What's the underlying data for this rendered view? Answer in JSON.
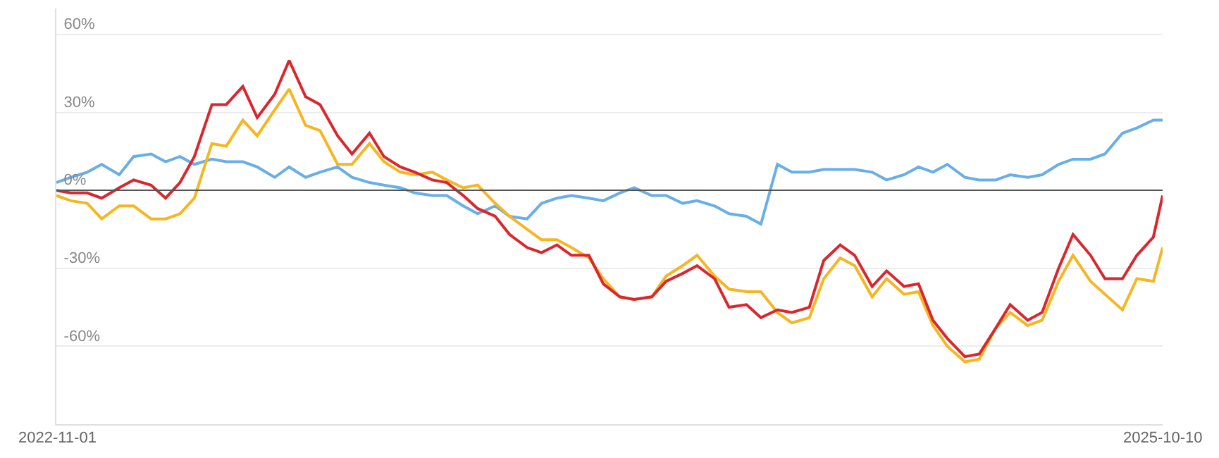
{
  "chart_data": {
    "type": "line",
    "x": [
      "2022-11-01",
      "2022-11-15",
      "2022-12-01",
      "2022-12-15",
      "2023-01-01",
      "2023-01-15",
      "2023-02-01",
      "2023-02-15",
      "2023-03-01",
      "2023-03-15",
      "2023-04-01",
      "2023-04-15",
      "2023-05-01",
      "2023-05-15",
      "2023-06-01",
      "2023-06-15",
      "2023-07-01",
      "2023-07-15",
      "2023-08-01",
      "2023-08-15",
      "2023-09-01",
      "2023-09-15",
      "2023-10-01",
      "2023-10-15",
      "2023-11-01",
      "2023-11-15",
      "2023-12-01",
      "2023-12-15",
      "2024-01-01",
      "2024-01-15",
      "2024-02-01",
      "2024-02-15",
      "2024-03-01",
      "2024-03-15",
      "2024-04-01",
      "2024-04-15",
      "2024-05-01",
      "2024-05-15",
      "2024-06-01",
      "2024-06-15",
      "2024-07-01",
      "2024-07-15",
      "2024-08-01",
      "2024-08-15",
      "2024-09-01",
      "2024-09-15",
      "2024-10-01",
      "2024-10-15",
      "2024-11-01",
      "2024-11-15",
      "2024-12-01",
      "2024-12-15",
      "2025-01-01",
      "2025-01-15",
      "2025-02-01",
      "2025-02-15",
      "2025-03-01",
      "2025-03-15",
      "2025-04-01",
      "2025-04-15",
      "2025-05-01",
      "2025-05-15",
      "2025-06-01",
      "2025-06-15",
      "2025-07-01",
      "2025-07-15",
      "2025-08-01",
      "2025-08-15",
      "2025-09-01",
      "2025-09-15",
      "2025-10-01",
      "2025-10-10"
    ],
    "series": [
      {
        "color": "#6aaee8",
        "values": [
          3,
          5,
          7,
          10,
          6,
          13,
          14,
          11,
          13,
          10,
          12,
          11,
          11,
          9,
          5,
          9,
          5,
          7,
          9,
          5,
          3,
          2,
          1,
          -1,
          -2,
          -2,
          -6,
          -9,
          -6,
          -10,
          -11,
          -5,
          -3,
          -2,
          -3,
          -4,
          -1,
          1,
          -2,
          -2,
          -5,
          -4,
          -6,
          -9,
          -10,
          -13,
          10,
          7,
          7,
          8,
          8,
          8,
          7,
          4,
          6,
          9,
          7,
          10,
          5,
          4,
          4,
          6,
          5,
          6,
          10,
          12,
          12,
          14,
          22,
          24,
          27,
          27
        ]
      },
      {
        "color": "#f5b622",
        "values": [
          -2,
          -4,
          -5,
          -11,
          -6,
          -6,
          -11,
          -11,
          -9,
          -3,
          18,
          17,
          27,
          21,
          31,
          39,
          25,
          23,
          10,
          10,
          18,
          11,
          7,
          6,
          7,
          4,
          1,
          2,
          -5,
          -10,
          -15,
          -19,
          -19,
          -22,
          -26,
          -34,
          -41,
          -42,
          -41,
          -33,
          -29,
          -25,
          -33,
          -38,
          -39,
          -39,
          -47,
          -51,
          -49,
          -34,
          -26,
          -29,
          -41,
          -34,
          -40,
          -39,
          -52,
          -60,
          -66,
          -65,
          -53,
          -47,
          -52,
          -50,
          -35,
          -25,
          -35,
          -40,
          -46,
          -34,
          -35,
          -22
        ]
      },
      {
        "color": "#d9272e",
        "values": [
          0,
          -1,
          -1,
          -3,
          1,
          4,
          2,
          -3,
          3,
          13,
          33,
          33,
          40,
          28,
          37,
          50,
          36,
          33,
          21,
          14,
          22,
          13,
          9,
          7,
          4,
          3,
          -2,
          -7,
          -10,
          -17,
          -22,
          -24,
          -21,
          -25,
          -25,
          -36,
          -41,
          -42,
          -41,
          -35,
          -32,
          -29,
          -34,
          -45,
          -44,
          -49,
          -46,
          -47,
          -45,
          -27,
          -21,
          -25,
          -37,
          -31,
          -37,
          -36,
          -50,
          -57,
          -64,
          -63,
          -53,
          -44,
          -50,
          -47,
          -30,
          -17,
          -25,
          -34,
          -34,
          -25,
          -18,
          -2
        ]
      }
    ],
    "xlim": [
      "2022-11-01",
      "2025-10-10"
    ],
    "xticks": [
      {
        "value": "2022-11-01",
        "label": "2022-11-01"
      },
      {
        "value": "2025-10-10",
        "label": "2025-10-10"
      }
    ],
    "ylim": [
      -90,
      70
    ],
    "yticks": [
      {
        "value": -90,
        "label": null
      },
      {
        "value": -60,
        "label": "-60%"
      },
      {
        "value": -30,
        "label": "-30%"
      },
      {
        "value": 0,
        "label": "0%"
      },
      {
        "value": 30,
        "label": "30%"
      },
      {
        "value": 60,
        "label": "60%"
      }
    ],
    "ref_lines": [
      {
        "axis": "y",
        "value": 0,
        "color": "#555555",
        "line_style": "solid"
      }
    ],
    "grid": "y",
    "legend": false
  }
}
